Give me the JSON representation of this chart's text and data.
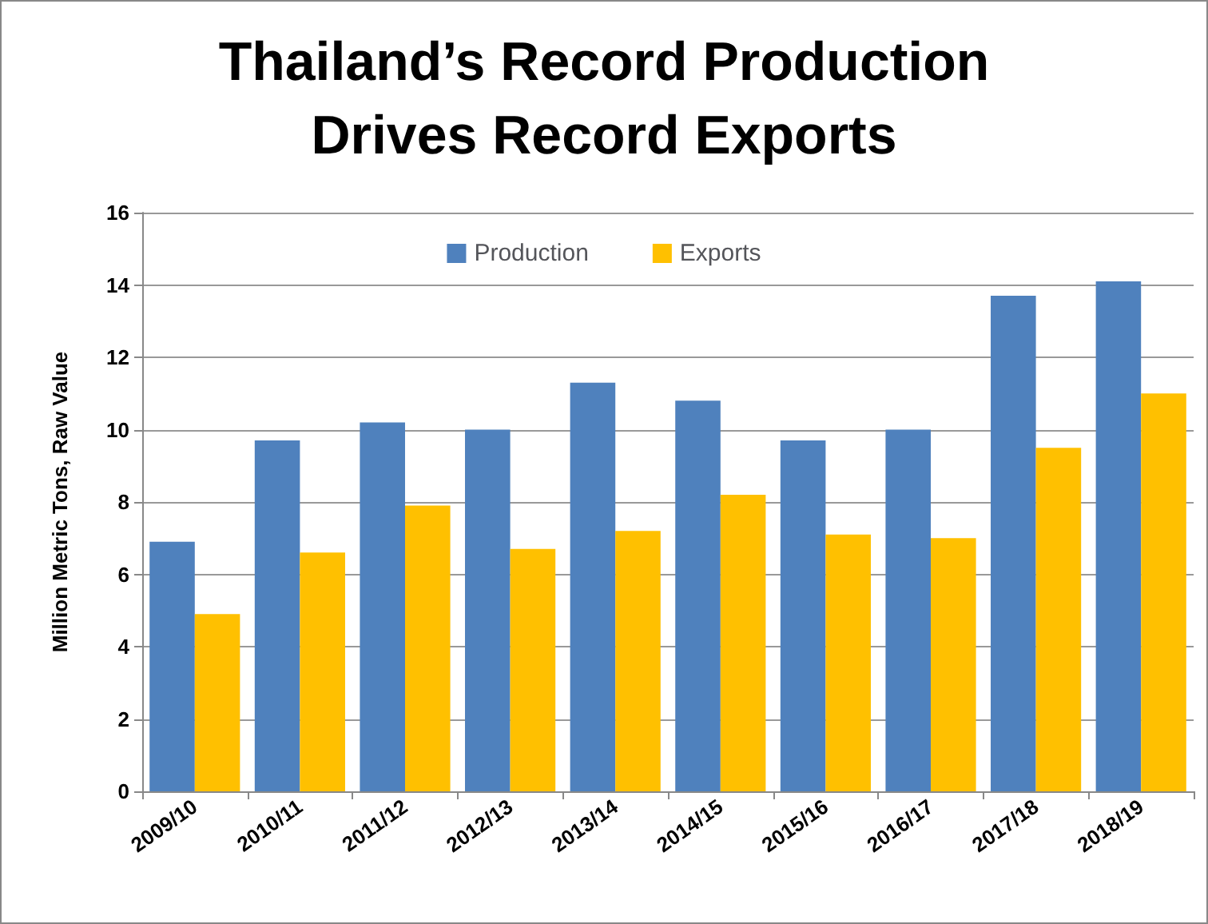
{
  "chart_data": {
    "type": "bar",
    "title": "Thailand’s Record Production\nDrives Record Exports",
    "ylabel": "Million Metric Tons, Raw Value",
    "categories": [
      "2009/10",
      "2010/11",
      "2011/12",
      "2012/13",
      "2013/14",
      "2014/15",
      "2015/16",
      "2016/17",
      "2017/18",
      "2018/19"
    ],
    "series": [
      {
        "name": "Production",
        "color": "#4f81bd",
        "values": [
          6.9,
          9.7,
          10.2,
          10.0,
          11.3,
          10.8,
          9.7,
          10.0,
          13.7,
          14.1
        ]
      },
      {
        "name": "Exports",
        "color": "#ffc000",
        "values": [
          4.9,
          6.6,
          7.9,
          6.7,
          7.2,
          8.2,
          7.1,
          7.0,
          9.5,
          11.0
        ]
      }
    ],
    "ylim": [
      0,
      16
    ],
    "yticks": [
      0,
      2,
      4,
      6,
      8,
      10,
      12,
      14,
      16
    ],
    "grid": "y",
    "legend": "top"
  }
}
